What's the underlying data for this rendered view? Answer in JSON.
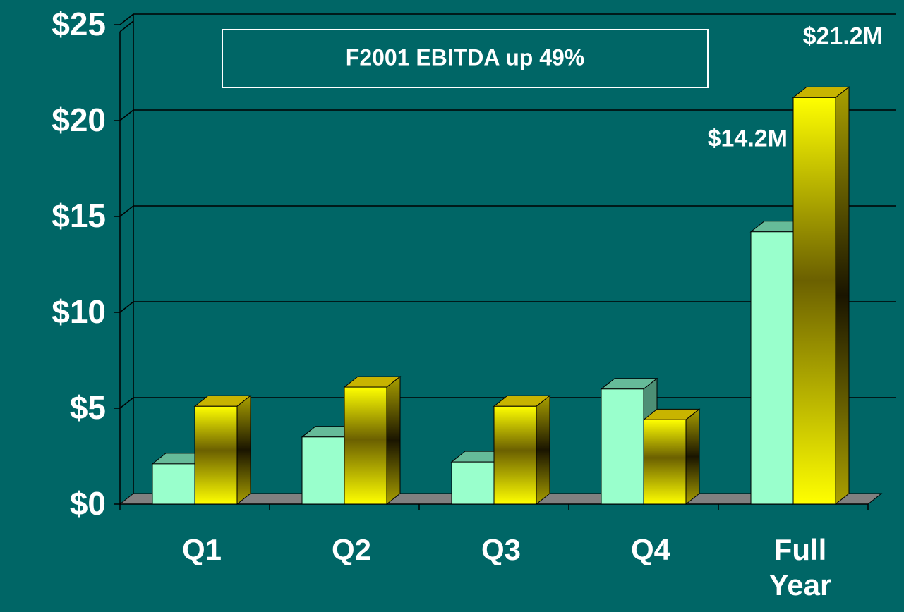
{
  "chart_data": {
    "type": "bar3d",
    "annotation": "F2001 EBITDA up 49%",
    "categories": [
      "Q1",
      "Q2",
      "Q3",
      "Q4",
      "Full Year"
    ],
    "series": [
      {
        "color": "#99ffcc",
        "values": [
          2.1,
          3.5,
          2.2,
          6.0,
          14.2
        ],
        "value_labels": [
          null,
          null,
          null,
          null,
          "$14.2M"
        ]
      },
      {
        "color": "#ffff00",
        "values": [
          5.1,
          6.1,
          5.1,
          4.4,
          21.2
        ],
        "value_labels": [
          null,
          null,
          null,
          null,
          "$21.2M"
        ]
      }
    ],
    "ylim": [
      0,
      25
    ],
    "yticks": [
      {
        "value": 0,
        "label": "$0"
      },
      {
        "value": 5,
        "label": "$5"
      },
      {
        "value": 10,
        "label": "$10"
      },
      {
        "value": 15,
        "label": "$15"
      },
      {
        "value": 20,
        "label": "$20"
      },
      {
        "value": 25,
        "label": "$25"
      }
    ],
    "grid": true
  }
}
